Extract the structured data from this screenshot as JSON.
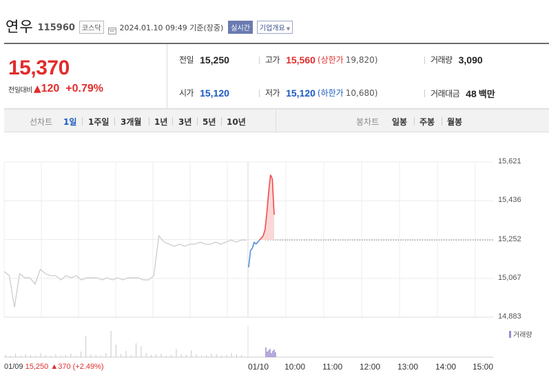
{
  "header": {
    "company": "연우",
    "code": "115960",
    "market": "코스닥",
    "datetime": "2024.01.10 09:49",
    "basis": "기준(장중)",
    "realtime": "실시간",
    "company_overview": "기업개요"
  },
  "summary": {
    "price": "15,370",
    "change_label": "전일대비",
    "change_value": "120",
    "change_pct": "+0.79%",
    "prev_close_label": "전일",
    "prev_close": "15,250",
    "high_label": "고가",
    "high": "15,560",
    "upper_limit_label": "(상한가",
    "upper_limit": "19,820)",
    "volume_label": "거래량",
    "volume": "3,090",
    "open_label": "시가",
    "open": "15,120",
    "low_label": "저가",
    "low": "15,120",
    "lower_limit_label": "(하한가",
    "lower_limit": "10,680)",
    "amount_label": "거래대금",
    "amount": "48",
    "amount_unit": "백만"
  },
  "period_bar": {
    "line_chart_label": "선차트",
    "line_periods": [
      "1일",
      "1주일",
      "3개월",
      "1년",
      "3년",
      "5년",
      "10년"
    ],
    "active_period": "1일",
    "candle_chart_label": "봉차트",
    "candle_periods": [
      "일봉",
      "주봉",
      "월봉"
    ]
  },
  "chart_data": {
    "type": "line",
    "y_ticks": [
      "15,621",
      "15,436",
      "15,252",
      "15,067",
      "14,883"
    ],
    "ylim": [
      14883,
      15621
    ],
    "reference_line": 15250,
    "x_ticks": [
      "01/09",
      "01/10",
      "10:00",
      "11:00",
      "12:00",
      "13:00",
      "14:00",
      "15:00"
    ],
    "prev_day_series": [
      15100,
      15080,
      14930,
      15090,
      15070,
      15070,
      15040,
      15110,
      15090,
      15080,
      15080,
      15060,
      15080,
      15070,
      15080,
      15060,
      15070,
      15070,
      15070,
      15060,
      15070,
      15060,
      15070,
      15060,
      15070,
      15070,
      15070,
      15060,
      15060,
      15080,
      15270,
      15240,
      15230,
      15220,
      15230,
      15220,
      15230,
      15230,
      15240,
      15230,
      15230,
      15240,
      15230,
      15240,
      15250,
      15240,
      15250,
      15250
    ],
    "today_series": [
      15120,
      15200,
      15210,
      15240,
      15230,
      15240,
      15250,
      15260,
      15270,
      15300,
      15380,
      15480,
      15560,
      15540,
      15370
    ],
    "volume_label": "거래량",
    "colors": {
      "up": "#f04a4a",
      "down": "#4d8fe0",
      "prev": "#c8c8c8",
      "volume_prev": "#c8c8c8",
      "volume_today": "#9b8ad0"
    }
  },
  "footer": {
    "date": "01/09",
    "close": "15,250",
    "change": "370",
    "pct": "(+2.49%)"
  }
}
